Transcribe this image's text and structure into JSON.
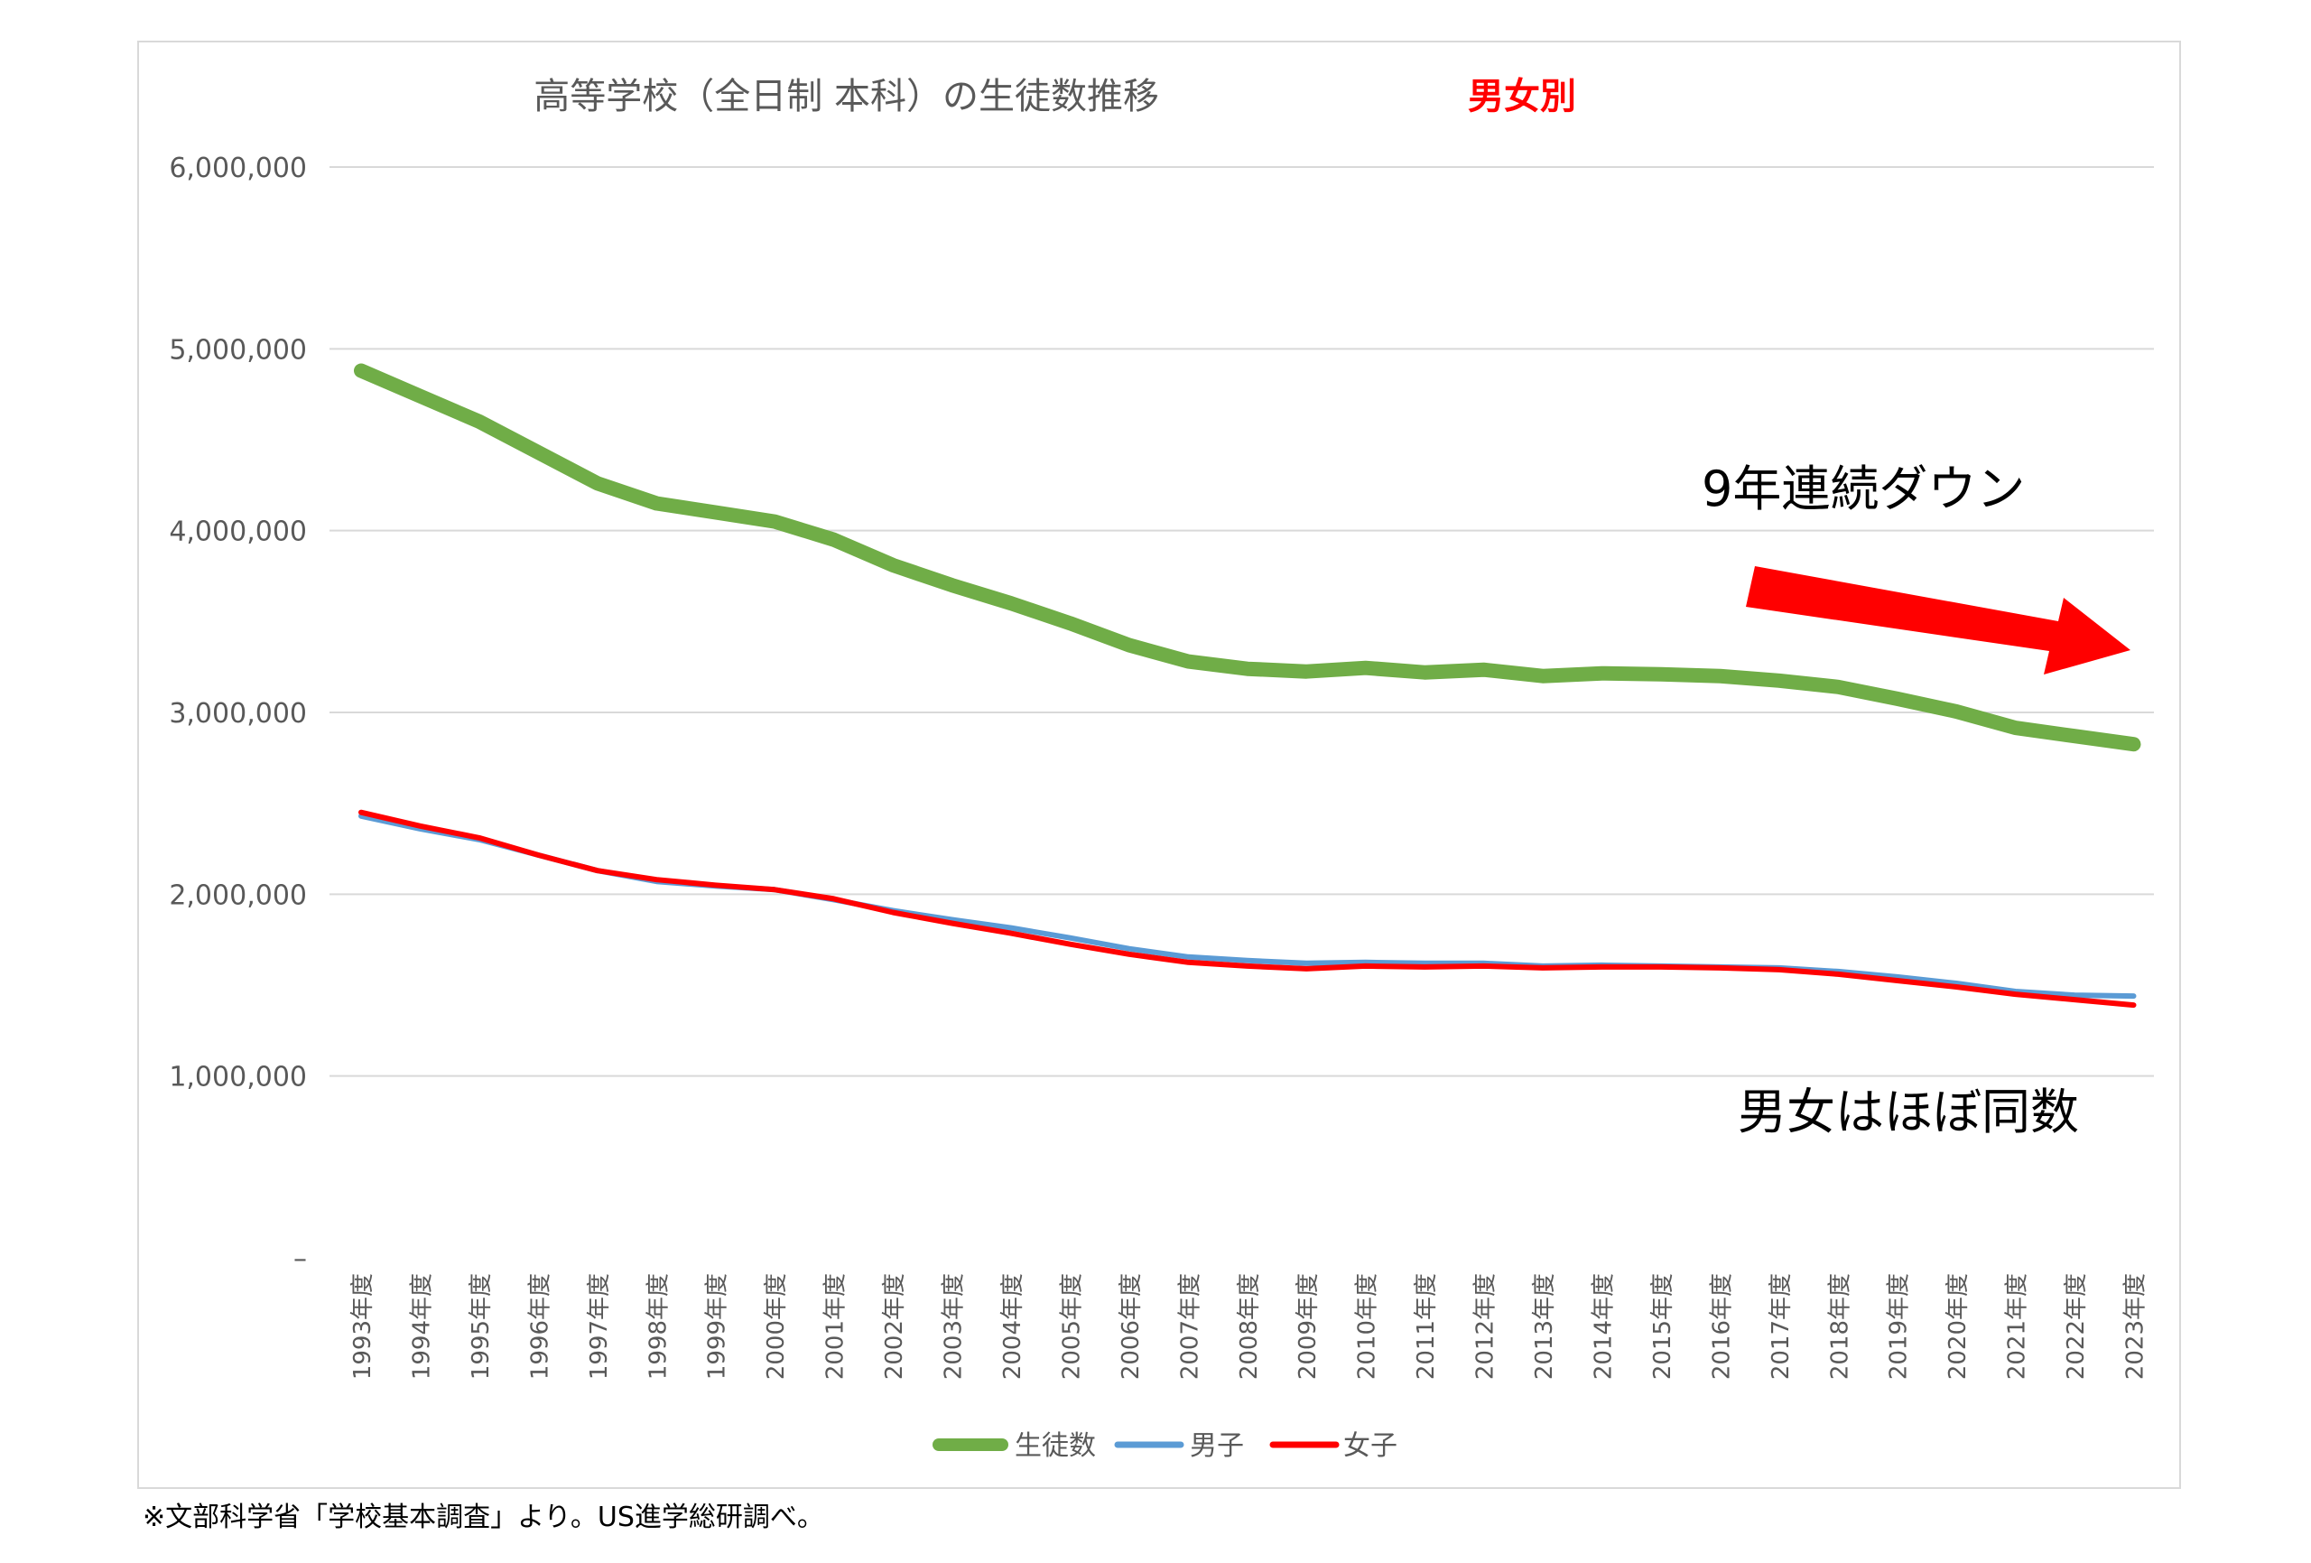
{
  "chart_data": {
    "type": "line",
    "title": "高等学校（全日制 本科）の生徒数推移",
    "title_highlight": "男女別",
    "categories": [
      "1993年度",
      "1994年度",
      "1995年度",
      "1996年度",
      "1997年度",
      "1998年度",
      "1999年度",
      "2000年度",
      "2001年度",
      "2002年度",
      "2003年度",
      "2004年度",
      "2005年度",
      "2006年度",
      "2007年度",
      "2008年度",
      "2009年度",
      "2010年度",
      "2011年度",
      "2012年度",
      "2013年度",
      "2014年度",
      "2015年度",
      "2016年度",
      "2017年度",
      "2018年度",
      "2019年度",
      "2020年度",
      "2021年度",
      "2022年度",
      "2023年度"
    ],
    "y_ticks": [
      "–",
      "1,000,000",
      "2,000,000",
      "3,000,000",
      "4,000,000",
      "5,000,000",
      "6,000,000"
    ],
    "ylim": [
      0,
      6000000
    ],
    "grid": true,
    "legend_position": "bottom",
    "series": [
      {
        "name": "生徒数",
        "color": "#70ad47",
        "values": [
          4880000,
          4740000,
          4600000,
          4430000,
          4260000,
          4150000,
          4100000,
          4050000,
          3950000,
          3810000,
          3700000,
          3600000,
          3490000,
          3370000,
          3280000,
          3240000,
          3225000,
          3245000,
          3220000,
          3235000,
          3200000,
          3215000,
          3210000,
          3200000,
          3175000,
          3140000,
          3075000,
          3005000,
          2915000,
          2870000,
          2825000
        ]
      },
      {
        "name": "男子",
        "color": "#5b9bd5",
        "values": [
          2430000,
          2360000,
          2300000,
          2215000,
          2130000,
          2070000,
          2045000,
          2025000,
          1970000,
          1910000,
          1860000,
          1815000,
          1760000,
          1700000,
          1655000,
          1635000,
          1620000,
          1625000,
          1620000,
          1620000,
          1605000,
          1610000,
          1605000,
          1600000,
          1595000,
          1575000,
          1545000,
          1510000,
          1465000,
          1445000,
          1440000
        ]
      },
      {
        "name": "女子",
        "color": "#ff0000",
        "values": [
          2450000,
          2375000,
          2310000,
          2215000,
          2130000,
          2080000,
          2050000,
          2025000,
          1975000,
          1900000,
          1840000,
          1785000,
          1725000,
          1670000,
          1625000,
          1605000,
          1590000,
          1605000,
          1600000,
          1605000,
          1595000,
          1600000,
          1600000,
          1595000,
          1585000,
          1560000,
          1525000,
          1490000,
          1450000,
          1420000,
          1390000
        ]
      }
    ],
    "annotations": [
      {
        "text": "9年連続ダウン"
      },
      {
        "text": "男女はほぼ同数"
      }
    ]
  },
  "footnote": "※文部科学省「学校基本調査」より。US進学総研調べ。",
  "colors": {
    "arrow": "#ff0000",
    "grid": "#d9d9d9",
    "text": "#595959",
    "title_highlight": "#ff0000"
  }
}
